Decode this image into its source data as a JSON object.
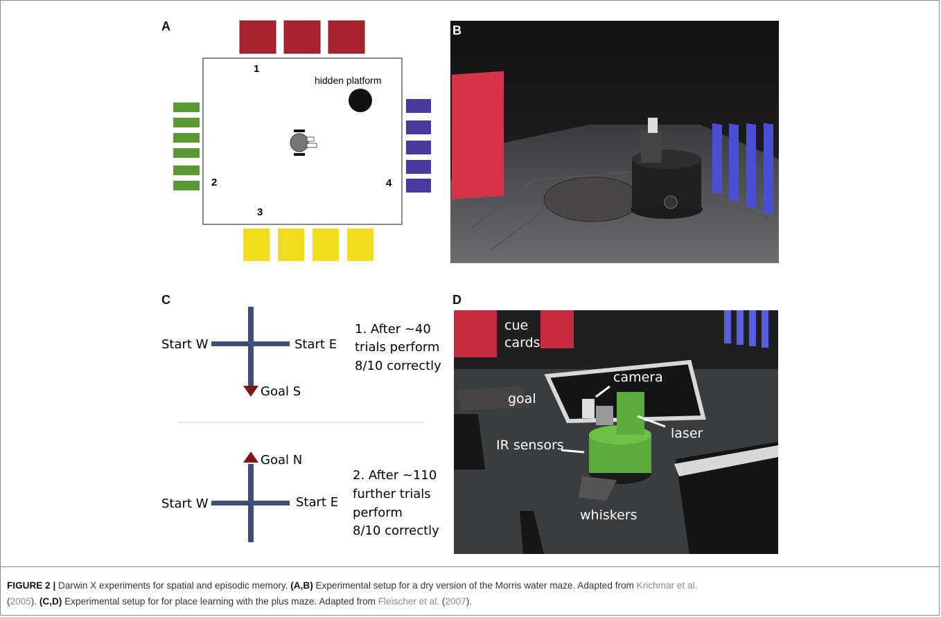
{
  "panels": {
    "a": {
      "letter": "A",
      "arena_labels": [
        "1",
        "2",
        "3",
        "4"
      ],
      "platform_label": "hidden platform",
      "colors": {
        "red": "#a8232b",
        "green": "#5a9a35",
        "purple": "#4a3aa0",
        "yellow": "#f2dc1e",
        "platform": "#111111"
      }
    },
    "b": {
      "letter": "B"
    },
    "c": {
      "letter": "C",
      "top": {
        "start_west": "Start W",
        "start_east": "Start E",
        "goal": "Goal S",
        "note": [
          "1. After ~40",
          "trials perform",
          "8/10 correctly"
        ]
      },
      "bottom": {
        "start_west": "Start W",
        "start_east": "Start E",
        "goal": "Goal N",
        "note": [
          "2. After ~110",
          "further trials",
          "perform",
          "8/10 correctly"
        ]
      },
      "colors": {
        "arm": "#3f4e78",
        "arrow": "#7a1a16"
      }
    },
    "d": {
      "letter": "D",
      "labels": {
        "cue_cards": [
          "cue",
          "cards"
        ],
        "camera": "camera",
        "goal": "goal",
        "laser": "laser",
        "ir_sensors": "IR sensors",
        "whiskers": "whiskers"
      }
    }
  },
  "caption": {
    "figure_label": "FIGURE 2 |",
    "text_1": " Darwin X experiments for spatial and episodic memory. ",
    "ab_label": "(A,B)",
    "text_2": " Experimental setup for a dry version of the Morris water maze. Adapted from ",
    "ref_1": "Krichmar et al.",
    "ref_1_year_open": "(",
    "ref_1_year": "2005",
    "text_3": "). ",
    "cd_label": "(C,D)",
    "text_4": " Experimental setup for for place learning with the plus maze. Adapted from ",
    "ref_2": "Fleischer et al.",
    "ref_2_year_open": " (",
    "ref_2_year": "2007",
    "text_5": ")."
  }
}
